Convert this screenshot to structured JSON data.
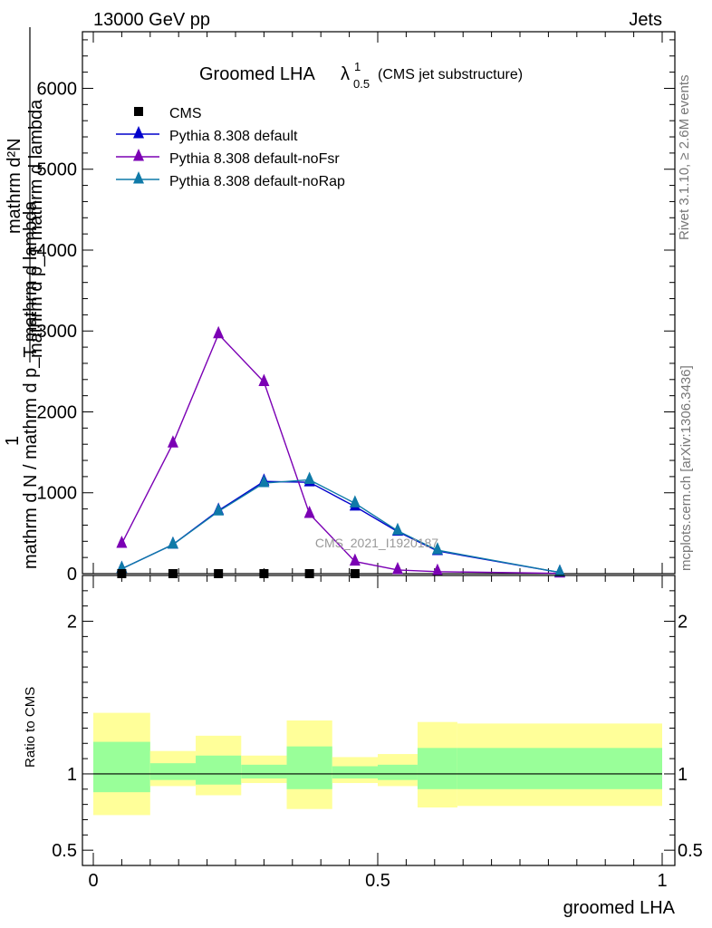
{
  "header": {
    "left": "13000 GeV pp",
    "right": "Jets"
  },
  "side_labels": {
    "rivet": "Rivet 3.1.10, ≥ 2.6M events",
    "mcplots": "mcplots.cern.ch [arXiv:1306.3436]"
  },
  "watermark": "CMS_2021_I1920187",
  "chart_data": {
    "type": "line",
    "title": "Groomed LHA",
    "title_symbol": "λ",
    "title_sup": "1",
    "title_sub": "0.5",
    "title_note": "(CMS jet substructure)",
    "ylabel_parts": [
      "1",
      "mathrm d N / mathrm d p",
      "T",
      " mathrm d lambda",
      "mathrm d",
      "2",
      "N",
      "mathrm d p",
      "T",
      " mathrm d lambda"
    ],
    "ylabel_numerator": "mathrm d²N",
    "ylabel_numerator_sub": "mathrm d p_T mathrm d lambda",
    "ylabel_one": "1",
    "ylabel_denominator": "mathrm d N / mathrm d p_T mathrm d lambda",
    "xlabel": "groomed LHA",
    "xlim": [
      0,
      1
    ],
    "ylim": [
      0,
      6700
    ],
    "y_ticks": [
      0,
      1000,
      2000,
      3000,
      4000,
      5000,
      6000
    ],
    "y_tick_labels": [
      "0",
      "1000",
      "2000",
      "3000",
      "4000",
      "5000",
      "6000"
    ],
    "x_ticks": [
      0,
      0.5,
      1
    ],
    "x_tick_labels": [
      "0",
      "0.5",
      "1"
    ],
    "legend": [
      {
        "name": "CMS",
        "color": "#000000",
        "marker": "square"
      },
      {
        "name": "Pythia 8.308 default",
        "color": "#0000cc",
        "marker": "triangle"
      },
      {
        "name": "Pythia 8.308 default-noFsr",
        "color": "#7b00b4",
        "marker": "triangle"
      },
      {
        "name": "Pythia 8.308 default-noRap",
        "color": "#0f7aa8",
        "marker": "triangle"
      }
    ],
    "cms": {
      "x": [
        0.05,
        0.14,
        0.22,
        0.3,
        0.38,
        0.46
      ],
      "y": [
        0,
        0,
        0,
        0,
        0,
        0
      ]
    },
    "series": [
      {
        "name": "Pythia 8.308 default",
        "color": "#0000cc",
        "x": [
          0.05,
          0.14,
          0.22,
          0.3,
          0.38,
          0.46,
          0.535,
          0.605,
          0.82
        ],
        "values": [
          60,
          360,
          780,
          1140,
          1130,
          830,
          520,
          280,
          15
        ]
      },
      {
        "name": "Pythia 8.308 default-noFsr",
        "color": "#7b00b4",
        "x": [
          0.05,
          0.14,
          0.22,
          0.3,
          0.38,
          0.46,
          0.535,
          0.605,
          0.82
        ],
        "values": [
          370,
          1610,
          2960,
          2370,
          740,
          150,
          45,
          25,
          3
        ]
      },
      {
        "name": "Pythia 8.308 default-noRap",
        "color": "#0f7aa8",
        "x": [
          0.05,
          0.14,
          0.22,
          0.3,
          0.38,
          0.46,
          0.535,
          0.605,
          0.82
        ],
        "values": [
          60,
          360,
          770,
          1120,
          1160,
          870,
          530,
          290,
          15
        ]
      }
    ],
    "ratio": {
      "ylabel": "Ratio to CMS",
      "ylim": [
        0.4,
        2.3
      ],
      "y_ticks": [
        0.5,
        1,
        2
      ],
      "y_tick_labels": [
        "0.5",
        "1",
        "2"
      ],
      "bins": [
        {
          "lo": 0.0,
          "hi": 0.1,
          "inner": [
            0.88,
            1.21
          ],
          "outer": [
            0.73,
            1.4
          ]
        },
        {
          "lo": 0.1,
          "hi": 0.18,
          "inner": [
            0.96,
            1.07
          ],
          "outer": [
            0.92,
            1.15
          ]
        },
        {
          "lo": 0.18,
          "hi": 0.26,
          "inner": [
            0.93,
            1.12
          ],
          "outer": [
            0.86,
            1.25
          ]
        },
        {
          "lo": 0.26,
          "hi": 0.34,
          "inner": [
            0.97,
            1.06
          ],
          "outer": [
            0.94,
            1.12
          ]
        },
        {
          "lo": 0.34,
          "hi": 0.42,
          "inner": [
            0.9,
            1.18
          ],
          "outer": [
            0.77,
            1.35
          ]
        },
        {
          "lo": 0.42,
          "hi": 0.5,
          "inner": [
            0.97,
            1.05
          ],
          "outer": [
            0.94,
            1.11
          ]
        },
        {
          "lo": 0.5,
          "hi": 0.57,
          "inner": [
            0.96,
            1.06
          ],
          "outer": [
            0.92,
            1.13
          ]
        },
        {
          "lo": 0.57,
          "hi": 0.64,
          "inner": [
            0.9,
            1.17
          ],
          "outer": [
            0.78,
            1.34
          ]
        },
        {
          "lo": 0.64,
          "hi": 1.0,
          "inner": [
            0.9,
            1.17
          ],
          "outer": [
            0.79,
            1.33
          ]
        }
      ],
      "inner_color": "#99ff99",
      "outer_color": "#ffff99"
    }
  }
}
